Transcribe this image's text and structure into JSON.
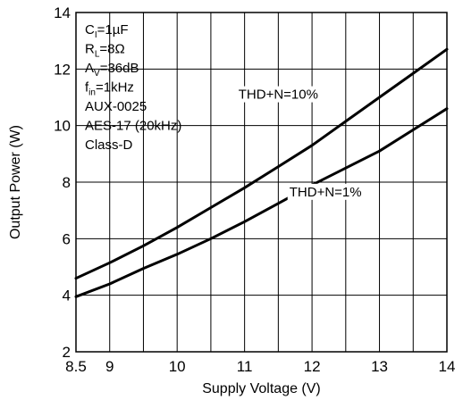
{
  "chart_data": {
    "type": "line",
    "xlabel": "Supply Voltage (V)",
    "ylabel": "Output Power (W)",
    "xlim": [
      8.5,
      14
    ],
    "ylim": [
      2,
      14
    ],
    "xticks": [
      8.5,
      9,
      10,
      11,
      12,
      13,
      14
    ],
    "yticks": [
      2,
      4,
      6,
      8,
      10,
      12,
      14
    ],
    "grid_x": [
      8.5,
      9,
      9.5,
      10,
      10.5,
      11,
      11.5,
      12,
      12.5,
      13,
      13.5,
      14
    ],
    "grid_y": [
      2,
      4,
      6,
      8,
      10,
      12,
      14
    ],
    "grid": true,
    "conditions": [
      {
        "main": "C",
        "sub": "I",
        "rest": "=1µF"
      },
      {
        "main": "R",
        "sub": "L",
        "rest": "=8Ω"
      },
      {
        "main": "A",
        "sub": "V",
        "rest": "=36dB"
      },
      {
        "main": "f",
        "sub": "in",
        "rest": "=1kHz"
      },
      {
        "main": "AUX-0025",
        "sub": "",
        "rest": ""
      },
      {
        "main": "AES-17 (20kHz)",
        "sub": "",
        "rest": ""
      },
      {
        "main": "Class-D",
        "sub": "",
        "rest": ""
      }
    ],
    "series": [
      {
        "name": "THD+N=10%",
        "label_at": [
          11.5,
          10.95
        ],
        "x": [
          8.5,
          9,
          9.5,
          10,
          10.5,
          11,
          11.5,
          12,
          12.5,
          13,
          13.5,
          14
        ],
        "values": [
          4.6,
          5.15,
          5.75,
          6.4,
          7.1,
          7.8,
          8.55,
          9.3,
          10.15,
          11.0,
          11.85,
          12.7
        ]
      },
      {
        "name": "THD+N=1%",
        "label_at": [
          12.2,
          7.5
        ],
        "x": [
          8.5,
          9,
          9.5,
          10,
          10.5,
          11,
          11.5,
          12,
          12.5,
          13,
          13.5,
          14
        ],
        "values": [
          3.95,
          4.4,
          4.95,
          5.45,
          6.0,
          6.6,
          7.25,
          7.9,
          8.5,
          9.1,
          9.85,
          10.6
        ]
      }
    ]
  }
}
